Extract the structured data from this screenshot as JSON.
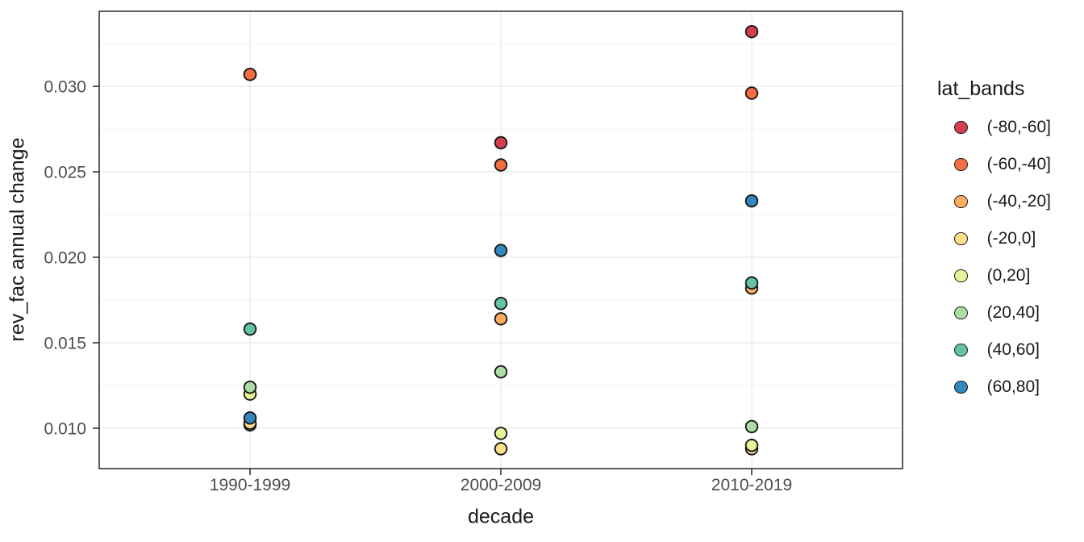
{
  "chart_data": {
    "type": "scatter",
    "title": "",
    "xlabel": "decade",
    "ylabel": "rev_fac annual change",
    "categories": [
      "1990-1999",
      "2000-2009",
      "2010-2019"
    ],
    "series": [
      {
        "name": "(-80,-60]",
        "color": "#D53E4F",
        "values": [
          0.0307,
          0.0267,
          0.0332
        ]
      },
      {
        "name": "(-60,-40]",
        "color": "#F46D43",
        "values": [
          0.0307,
          0.0254,
          0.0296
        ]
      },
      {
        "name": "(-40,-20]",
        "color": "#FDAE61",
        "values": [
          0.0102,
          0.0164,
          0.0182
        ]
      },
      {
        "name": "(-20,0]",
        "color": "#FEE08B",
        "values": [
          0.0103,
          0.0088,
          0.0088
        ]
      },
      {
        "name": "(0,20]",
        "color": "#E6F598",
        "values": [
          0.012,
          0.0097,
          0.009
        ]
      },
      {
        "name": "(20,40]",
        "color": "#ABDDA4",
        "values": [
          0.0124,
          0.0133,
          0.0101
        ]
      },
      {
        "name": "(40,60]",
        "color": "#66C2A5",
        "values": [
          0.0158,
          0.0173,
          0.0185
        ]
      },
      {
        "name": "(60,80]",
        "color": "#3288BD",
        "values": [
          0.0106,
          0.0204,
          0.0233
        ]
      }
    ],
    "y_axis": {
      "ticks": [
        {
          "value": 0.01,
          "label": "0.010"
        },
        {
          "value": 0.015,
          "label": "0.015"
        },
        {
          "value": 0.02,
          "label": "0.020"
        },
        {
          "value": 0.025,
          "label": "0.025"
        },
        {
          "value": 0.03,
          "label": "0.030"
        }
      ],
      "minor": [
        0.0125,
        0.0175,
        0.0225,
        0.0275,
        0.0325
      ],
      "range": [
        0.00764,
        0.03439
      ]
    },
    "legend": {
      "title": "lat_bands",
      "position": "right"
    },
    "grid": true,
    "theme": {
      "background": "#FFFFFF",
      "panel_border": "#333333",
      "grid_major": "#EBEBEB",
      "grid_minor": "#F4F4F4",
      "tick_color": "#333333",
      "tick_label_color": "#4D4D4D",
      "title_color": "#1A1A1A",
      "point_stroke": "#1A1A1A"
    }
  }
}
